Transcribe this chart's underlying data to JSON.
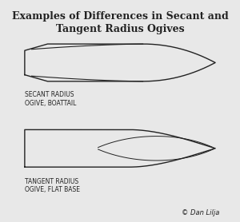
{
  "title_line1": "Examples of Differences in Secant and",
  "title_line2": "Tangent Radius Ogives",
  "label1_line1": "SECANT RADIUS",
  "label1_line2": "OGIVE, BOATTAIL",
  "label2_line1": "TANGENT RADIUS",
  "label2_line2": "OGIVE, FLAT BASE",
  "copyright": "© Dan Lilja",
  "bg_color": "#e8e8e8",
  "line_color": "#222222",
  "title_fontsize": 9,
  "label_fontsize": 5.5,
  "copyright_fontsize": 6
}
